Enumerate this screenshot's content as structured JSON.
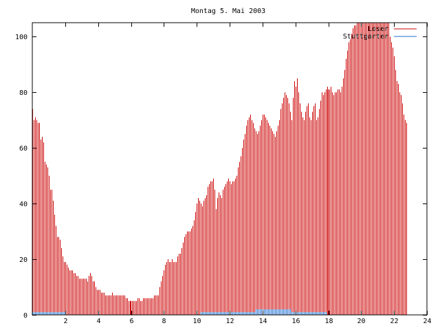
{
  "chart_data": {
    "type": "bar",
    "title": "Montag 5. Mai 2003",
    "xlabel": "",
    "ylabel": "",
    "xlim": [
      0,
      24
    ],
    "ylim": [
      0,
      105
    ],
    "x_ticks": [
      2,
      4,
      6,
      8,
      10,
      12,
      14,
      16,
      18,
      20,
      22,
      24
    ],
    "y_ticks": [
      0,
      20,
      40,
      60,
      80,
      100
    ],
    "grid": false,
    "legend_position": "top-right",
    "series": [
      {
        "name": "Loser",
        "color": "#cc0000",
        "style": "impulses",
        "bin_hours": 0.0833333,
        "values": [
          74,
          70,
          71,
          70,
          69,
          69,
          63,
          64,
          62,
          55,
          54,
          53,
          50,
          45,
          45,
          41,
          36,
          32,
          28,
          28,
          27,
          24,
          21,
          19,
          19,
          18,
          17,
          16,
          16,
          16,
          15,
          15,
          14,
          14,
          13,
          13,
          13,
          13,
          13,
          13,
          12,
          14,
          15,
          14,
          12,
          12,
          10,
          9,
          9,
          9,
          8,
          8,
          8,
          7,
          7,
          7,
          7,
          7,
          8,
          7,
          7,
          7,
          7,
          7,
          7,
          7,
          7,
          7,
          6,
          6,
          5,
          5,
          5,
          5,
          5,
          5,
          5,
          6,
          6,
          5,
          5,
          6,
          6,
          6,
          6,
          6,
          6,
          6,
          6,
          7,
          7,
          7,
          7,
          10,
          12,
          14,
          16,
          18,
          19,
          20,
          19,
          19,
          20,
          19,
          19,
          19,
          21,
          22,
          22,
          24,
          26,
          28,
          29,
          30,
          30,
          30,
          31,
          32,
          34,
          37,
          40,
          42,
          41,
          40,
          39,
          41,
          42,
          43,
          46,
          47,
          48,
          48,
          49,
          45,
          38,
          42,
          44,
          43,
          42,
          45,
          46,
          47,
          48,
          49,
          48,
          47,
          48,
          48,
          49,
          50,
          53,
          55,
          57,
          60,
          63,
          65,
          68,
          70,
          71,
          72,
          70,
          69,
          67,
          66,
          65,
          66,
          68,
          70,
          72,
          72,
          71,
          70,
          69,
          68,
          67,
          66,
          65,
          64,
          66,
          68,
          70,
          74,
          76,
          78,
          80,
          79,
          78,
          76,
          73,
          70,
          78,
          84,
          82,
          85,
          80,
          76,
          73,
          71,
          70,
          73,
          75,
          76,
          71,
          70,
          73,
          75,
          76,
          70,
          71,
          74,
          77,
          80,
          79,
          80,
          81,
          82,
          81,
          81,
          82,
          80,
          79,
          80,
          80,
          81,
          81,
          80,
          82,
          85,
          88,
          92,
          95,
          98,
          99,
          101,
          103,
          104,
          104,
          105,
          105,
          105,
          105,
          105,
          105,
          105,
          105,
          105,
          105,
          105,
          105,
          105,
          105,
          105,
          105,
          105,
          105,
          105,
          105,
          105,
          105,
          105,
          105,
          100,
          98,
          96,
          93,
          88,
          84,
          83,
          80,
          79,
          76,
          72,
          70,
          69
        ]
      },
      {
        "name": "Stuttgarter",
        "color": "#1f6fd0",
        "style": "impulses",
        "bin_hours": 0.0833333,
        "values": [
          1,
          1,
          1,
          1,
          1,
          1,
          1,
          1,
          1,
          1,
          1,
          1,
          1,
          1,
          1,
          1,
          1,
          1,
          1,
          1,
          1,
          1,
          1,
          1,
          0,
          0,
          0,
          0,
          0,
          0,
          0,
          0,
          0,
          0,
          0,
          0,
          0,
          0,
          0,
          0,
          0,
          0,
          0,
          0,
          0,
          0,
          0,
          0,
          0,
          0,
          0,
          0,
          0,
          0,
          0,
          0,
          0,
          0,
          0,
          0,
          0,
          0,
          0,
          0,
          0,
          0,
          0,
          0,
          0,
          0,
          0,
          0,
          0,
          0,
          0,
          0,
          0,
          0,
          0,
          0,
          0,
          0,
          0,
          0,
          0,
          0,
          0,
          0,
          0,
          0,
          0,
          0,
          0,
          0,
          0,
          0,
          0,
          0,
          0,
          0,
          0,
          0,
          0,
          0,
          0,
          0,
          0,
          0,
          0,
          0,
          0,
          0,
          0,
          0,
          0,
          0,
          0,
          0,
          0,
          0,
          0,
          0,
          0,
          1,
          1,
          1,
          1,
          1,
          1,
          1,
          1,
          1,
          1,
          1,
          1,
          1,
          1,
          1,
          1,
          1,
          1,
          1,
          1,
          1,
          1,
          1,
          1,
          1,
          1,
          1,
          1,
          1,
          1,
          1,
          1,
          1,
          1,
          1,
          1,
          1,
          1,
          1,
          1,
          2,
          2,
          2,
          2,
          2,
          2,
          2,
          2,
          2,
          2,
          2,
          2,
          2,
          2,
          2,
          2,
          2,
          2,
          2,
          2,
          2,
          2,
          2,
          2,
          2,
          2,
          1,
          1,
          1,
          1,
          1,
          1,
          1,
          1,
          1,
          1,
          1,
          1,
          1,
          1,
          1,
          1,
          1,
          1,
          1,
          1,
          1,
          1,
          1,
          1,
          1,
          1,
          0,
          0,
          0,
          0,
          0,
          0,
          0,
          0,
          0,
          0,
          0,
          0,
          0,
          0,
          0,
          0,
          0,
          0,
          0,
          0,
          0,
          0,
          0,
          0,
          0,
          0,
          0,
          0,
          0,
          0,
          0,
          0,
          0,
          0,
          0,
          0,
          0,
          0,
          0,
          0,
          0,
          0,
          0,
          0,
          0,
          0,
          0,
          0,
          0,
          0,
          0,
          0,
          0,
          0,
          0,
          0,
          0,
          0,
          0,
          0,
          0,
          0,
          0,
          0,
          0,
          0,
          0,
          0,
          0,
          0,
          0,
          0,
          0,
          0,
          0,
          0,
          0
        ]
      }
    ]
  }
}
